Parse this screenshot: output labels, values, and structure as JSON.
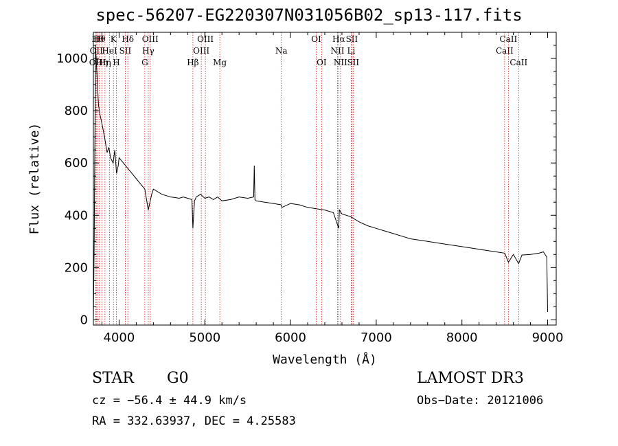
{
  "chart_data": {
    "type": "line",
    "title": "spec-56207-EG220307N031056B02_sp13-117.fits",
    "xlabel": "Wavelength (Å)",
    "ylabel": "Flux (relative)",
    "xlim": [
      3700,
      9100
    ],
    "ylim": [
      -20,
      1100
    ],
    "xticks": [
      4000,
      5000,
      6000,
      7000,
      8000,
      9000
    ],
    "yticks": [
      0,
      200,
      400,
      600,
      800,
      1000
    ],
    "grid": false,
    "series": [
      {
        "x": [
          3700,
          3710,
          3725,
          3740,
          3760,
          3780,
          3800,
          3830,
          3860,
          3880,
          3900,
          3930,
          3950,
          3970,
          3990,
          4000,
          4050,
          4100,
          4150,
          4200,
          4250,
          4300,
          4340,
          4380,
          4400,
          4450,
          4500,
          4550,
          4600,
          4650,
          4700,
          4750,
          4800,
          4850,
          4861,
          4880,
          4900,
          4950,
          5000,
          5050,
          5100,
          5150,
          5200,
          5300,
          5400,
          5500,
          5570,
          5577,
          5585,
          5600,
          5700,
          5800,
          5890,
          5900,
          6000,
          6100,
          6200,
          6300,
          6400,
          6500,
          6563,
          6570,
          6600,
          6700,
          6800,
          6900,
          7000,
          7100,
          7200,
          7300,
          7400,
          7500,
          7600,
          7700,
          7800,
          7900,
          8000,
          8100,
          8200,
          8300,
          8400,
          8500,
          8542,
          8600,
          8662,
          8700,
          8800,
          8900,
          8950,
          8990,
          9000
        ],
        "y": [
          0,
          300,
          1050,
          950,
          820,
          780,
          750,
          700,
          640,
          660,
          620,
          600,
          650,
          560,
          590,
          620,
          600,
          580,
          560,
          540,
          520,
          500,
          420,
          480,
          500,
          490,
          480,
          475,
          470,
          468,
          465,
          470,
          465,
          460,
          350,
          455,
          470,
          480,
          465,
          470,
          460,
          470,
          455,
          460,
          470,
          465,
          470,
          590,
          460,
          455,
          450,
          445,
          440,
          430,
          445,
          440,
          430,
          425,
          420,
          410,
          350,
          420,
          405,
          395,
          375,
          360,
          350,
          340,
          330,
          320,
          310,
          305,
          300,
          295,
          290,
          285,
          280,
          275,
          270,
          265,
          260,
          255,
          220,
          250,
          215,
          248,
          250,
          255,
          260,
          240,
          30
        ]
      }
    ],
    "lines": [
      {
        "x": 3727,
        "label": "OII",
        "row": 2
      },
      {
        "x": 3734,
        "label": "OII",
        "row": 1
      },
      {
        "x": 3750,
        "label": "Hθ",
        "row": 0
      },
      {
        "x": 3770,
        "label": "Hθ",
        "row": 0
      },
      {
        "x": 3798,
        "label": "Hη",
        "row": 2
      },
      {
        "x": 3835,
        "label": "Hη",
        "row": 2
      },
      {
        "x": 3889,
        "label": "HeI",
        "row": 1
      },
      {
        "x": 3934,
        "label": "K",
        "row": 0
      },
      {
        "x": 3968,
        "label": "H",
        "row": 2
      },
      {
        "x": 4072,
        "label": "SII",
        "row": 1
      },
      {
        "x": 4102,
        "label": "Hδ",
        "row": 0
      },
      {
        "x": 4300,
        "label": "G",
        "row": 2
      },
      {
        "x": 4340,
        "label": "Hγ",
        "row": 1
      },
      {
        "x": 4363,
        "label": "OIII",
        "row": 0
      },
      {
        "x": 4861,
        "label": "Hβ",
        "row": 2
      },
      {
        "x": 4959,
        "label": "OIII",
        "row": 1
      },
      {
        "x": 5007,
        "label": "OIII",
        "row": 0
      },
      {
        "x": 5175,
        "label": "Mg",
        "row": 2
      },
      {
        "x": 5893,
        "label": "Na",
        "row": 1
      },
      {
        "x": 6300,
        "label": "OI",
        "row": 0
      },
      {
        "x": 6363,
        "label": "OI",
        "row": 2
      },
      {
        "x": 6548,
        "label": "NII",
        "row": 1
      },
      {
        "x": 6563,
        "label": "Hα",
        "row": 0
      },
      {
        "x": 6583,
        "label": "NII",
        "row": 2
      },
      {
        "x": 6708,
        "label": "Li",
        "row": 1
      },
      {
        "x": 6716,
        "label": "SII",
        "row": 0
      },
      {
        "x": 6731,
        "label": "SII",
        "row": 2
      },
      {
        "x": 8498,
        "label": "CaII",
        "row": 1
      },
      {
        "x": 8542,
        "label": "CaII",
        "row": 0
      },
      {
        "x": 8662,
        "label": "CaII",
        "row": 2
      }
    ]
  },
  "info": {
    "class": "STAR",
    "subclass": "G0",
    "survey": "LAMOST DR3",
    "cz": "cz = −56.4 ± 44.9 km/s",
    "obs_date": "Obs−Date: 20121006",
    "coords": "RA = 332.63937, DEC =   4.25583"
  }
}
